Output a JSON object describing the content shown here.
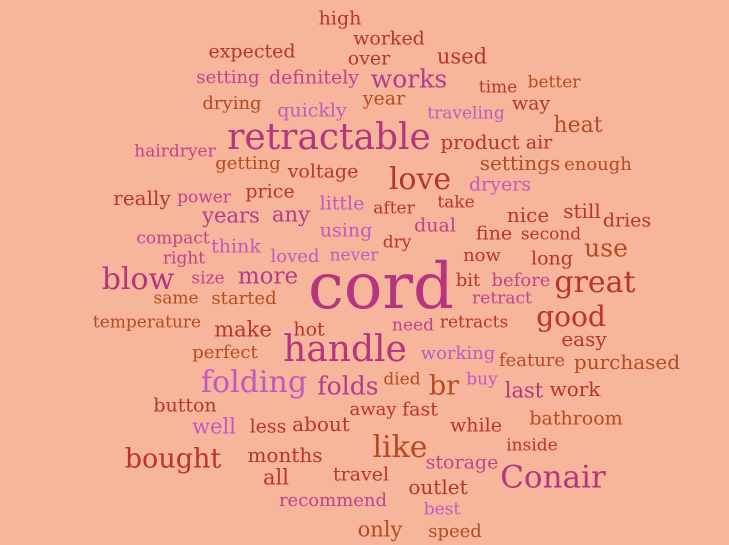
{
  "background": "#F7B59B",
  "words": [
    {
      "text": "high",
      "c": "#B8342E"
    },
    {
      "text": "worked",
      "c": "#B8342E"
    },
    {
      "text": "expected",
      "c": "#B8342E"
    },
    {
      "text": "over",
      "c": "#B8342E"
    },
    {
      "text": "used",
      "c": "#B8342E"
    },
    {
      "text": "works",
      "c": "#B53A8E"
    },
    {
      "text": "setting",
      "c": "#C4418D"
    },
    {
      "text": "definitely",
      "c": "#C4418D"
    },
    {
      "text": "time",
      "c": "#B8342E"
    },
    {
      "text": "better",
      "c": "#B84A1F"
    },
    {
      "text": "drying",
      "c": "#B84A1F"
    },
    {
      "text": "year",
      "c": "#B84A1F"
    },
    {
      "text": "way",
      "c": "#B8342E"
    },
    {
      "text": "quickly",
      "c": "#C05AC0"
    },
    {
      "text": "traveling",
      "c": "#C05AC0"
    },
    {
      "text": "retractable",
      "c": "#B5357F"
    },
    {
      "text": "heat",
      "c": "#B84A1F"
    },
    {
      "text": "product",
      "c": "#B8342E"
    },
    {
      "text": "air",
      "c": "#B8342E"
    },
    {
      "text": "hairdryer",
      "c": "#C4418D"
    },
    {
      "text": "getting",
      "c": "#B84A1F"
    },
    {
      "text": "settings",
      "c": "#B84A1F"
    },
    {
      "text": "enough",
      "c": "#B84A1F"
    },
    {
      "text": "voltage",
      "c": "#B8342E"
    },
    {
      "text": "love",
      "c": "#B8342E"
    },
    {
      "text": "dryers",
      "c": "#C05AC0"
    },
    {
      "text": "really",
      "c": "#B8342E"
    },
    {
      "text": "power",
      "c": "#C4418D"
    },
    {
      "text": "price",
      "c": "#B8342E"
    },
    {
      "text": "take",
      "c": "#B8342E"
    },
    {
      "text": "little",
      "c": "#C05AC0"
    },
    {
      "text": "after",
      "c": "#B8342E"
    },
    {
      "text": "years",
      "c": "#B53A8E"
    },
    {
      "text": "any",
      "c": "#B53A8E"
    },
    {
      "text": "nice",
      "c": "#B8342E"
    },
    {
      "text": "still",
      "c": "#B8342E"
    },
    {
      "text": "dries",
      "c": "#B8342E"
    },
    {
      "text": "compact",
      "c": "#C4418D"
    },
    {
      "text": "dual",
      "c": "#C4418D"
    },
    {
      "text": "using",
      "c": "#C05AC0"
    },
    {
      "text": "fine",
      "c": "#B8342E"
    },
    {
      "text": "second",
      "c": "#B8342E"
    },
    {
      "text": "think",
      "c": "#C05AC0"
    },
    {
      "text": "dry",
      "c": "#B8342E"
    },
    {
      "text": "use",
      "c": "#B84A1F"
    },
    {
      "text": "right",
      "c": "#C4418D"
    },
    {
      "text": "loved",
      "c": "#C05AC0"
    },
    {
      "text": "never",
      "c": "#C05AC0"
    },
    {
      "text": "now",
      "c": "#B8342E"
    },
    {
      "text": "long",
      "c": "#B8342E"
    },
    {
      "text": "blow",
      "c": "#B5357F"
    },
    {
      "text": "size",
      "c": "#C4418D"
    },
    {
      "text": "more",
      "c": "#B53A8E"
    },
    {
      "text": "cord",
      "c": "#B5357F"
    },
    {
      "text": "bit",
      "c": "#B8342E"
    },
    {
      "text": "before",
      "c": "#C4418D"
    },
    {
      "text": "great",
      "c": "#B8342E"
    },
    {
      "text": "same",
      "c": "#B84A1F"
    },
    {
      "text": "started",
      "c": "#B84A1F"
    },
    {
      "text": "retract",
      "c": "#C4418D"
    },
    {
      "text": "temperature",
      "c": "#B84A1F"
    },
    {
      "text": "good",
      "c": "#B8342E"
    },
    {
      "text": "need",
      "c": "#C4418D"
    },
    {
      "text": "retracts",
      "c": "#B8342E"
    },
    {
      "text": "make",
      "c": "#B8342E"
    },
    {
      "text": "hot",
      "c": "#B8342E"
    },
    {
      "text": "easy",
      "c": "#B8342E"
    },
    {
      "text": "handle",
      "c": "#B5357F"
    },
    {
      "text": "perfect",
      "c": "#B84A1F"
    },
    {
      "text": "working",
      "c": "#C05AC0"
    },
    {
      "text": "feature",
      "c": "#B84A1F"
    },
    {
      "text": "purchased",
      "c": "#B84A1F"
    },
    {
      "text": "folding",
      "c": "#C05AC0"
    },
    {
      "text": "folds",
      "c": "#B53A8E"
    },
    {
      "text": "died",
      "c": "#B84A1F"
    },
    {
      "text": "br",
      "c": "#B84A1F"
    },
    {
      "text": "buy",
      "c": "#C05AC0"
    },
    {
      "text": "last",
      "c": "#B5357F"
    },
    {
      "text": "work",
      "c": "#B8342E"
    },
    {
      "text": "button",
      "c": "#B8342E"
    },
    {
      "text": "away",
      "c": "#B8342E"
    },
    {
      "text": "fast",
      "c": "#B8342E"
    },
    {
      "text": "bathroom",
      "c": "#B84A1F"
    },
    {
      "text": "well",
      "c": "#C05AC0"
    },
    {
      "text": "less",
      "c": "#B8342E"
    },
    {
      "text": "about",
      "c": "#B8342E"
    },
    {
      "text": "while",
      "c": "#B8342E"
    },
    {
      "text": "like",
      "c": "#B84A1F"
    },
    {
      "text": "inside",
      "c": "#B8342E"
    },
    {
      "text": "bought",
      "c": "#B8342E"
    },
    {
      "text": "months",
      "c": "#B8342E"
    },
    {
      "text": "storage",
      "c": "#C4418D"
    },
    {
      "text": "Conair",
      "c": "#B5357F"
    },
    {
      "text": "all",
      "c": "#B8342E"
    },
    {
      "text": "travel",
      "c": "#B8342E"
    },
    {
      "text": "outlet",
      "c": "#B8342E"
    },
    {
      "text": "recommend",
      "c": "#C4418D"
    },
    {
      "text": "best",
      "c": "#C05AC0"
    },
    {
      "text": "only",
      "c": "#B84A1F"
    },
    {
      "text": "speed",
      "c": "#B84A1F"
    }
  ]
}
